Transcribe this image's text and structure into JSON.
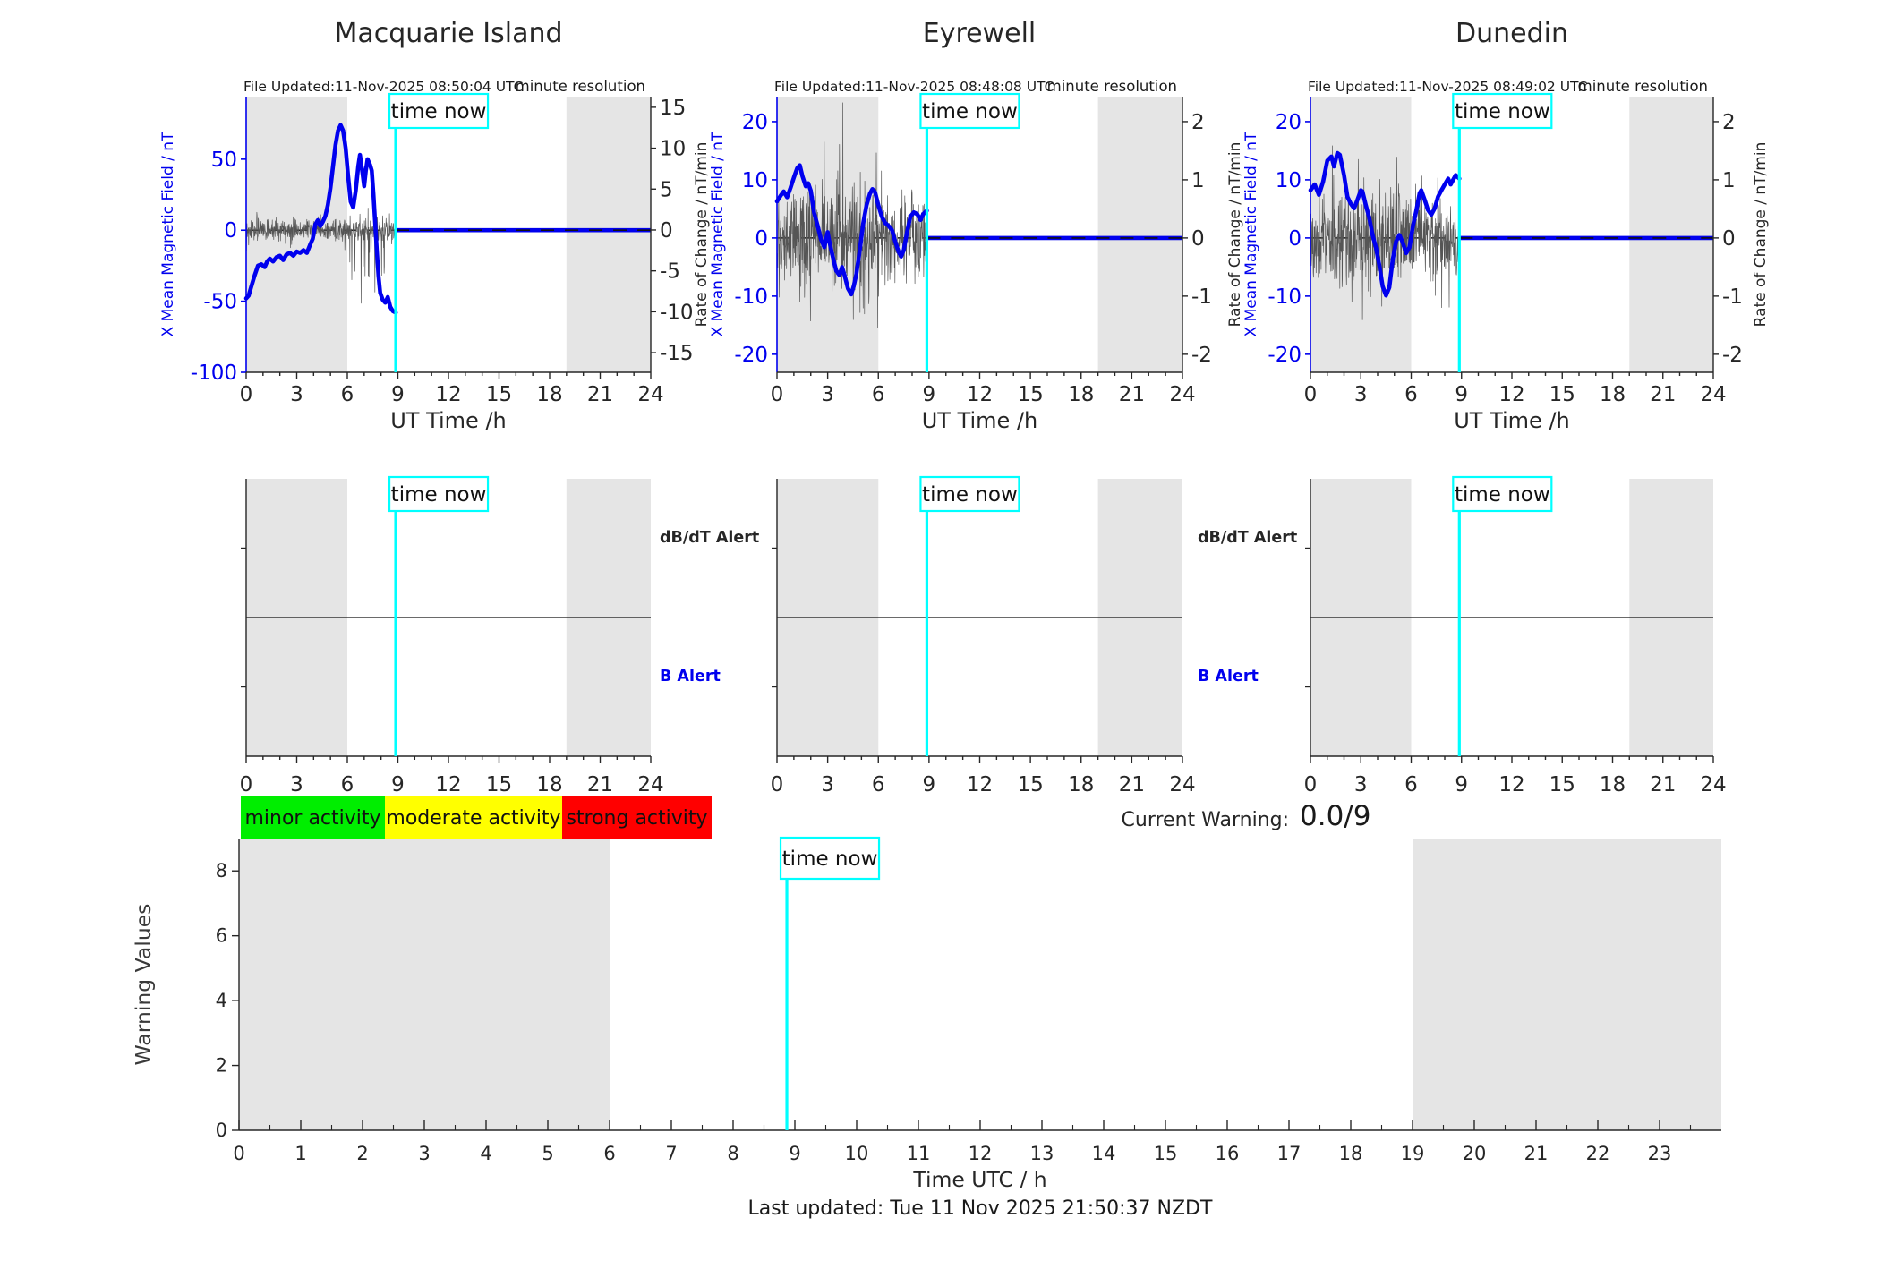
{
  "page": {
    "footer": "Last updated: Tue 11 Nov 2025 21:50:37 NZDT"
  },
  "time_now": {
    "label": "time now",
    "hour": 8.87
  },
  "current_warning": {
    "label": "Current Warning:",
    "value": "0.0/9"
  },
  "legend": {
    "items": [
      {
        "label": "minor activity",
        "color": "#00ee00"
      },
      {
        "label": "moderate activity",
        "color": "#ffff00"
      },
      {
        "label": "strong activity",
        "color": "#ff0000"
      }
    ]
  },
  "colors": {
    "blue": "#0000ee",
    "cyan": "#00ffff",
    "night_band": "#e5e5e5",
    "noise": "#555555",
    "text": "#262626",
    "dash": "#111111"
  },
  "chart_data": [
    {
      "type": "line",
      "station": "Macquarie Island",
      "file_updated": "File Updated:11-Nov-2025 08:50:04 UTC",
      "annotation": "minute resolution",
      "xlabel": "UT Time /h",
      "xlim": [
        0,
        24
      ],
      "x_ticks": [
        0,
        3,
        6,
        9,
        12,
        15,
        18,
        21,
        24
      ],
      "night_bands": [
        [
          0,
          6
        ],
        [
          19,
          24
        ]
      ],
      "left_axis": {
        "label": "X Mean Magnetic Field / nT",
        "ticks": [
          50,
          0,
          -50,
          -100
        ],
        "ylim": [
          -100,
          94
        ],
        "color": "#0000ee"
      },
      "right_axis": {
        "label": "Rate of Change / nT/min",
        "ticks": [
          15,
          10,
          5,
          0,
          -5,
          -10,
          -15
        ],
        "ylim": [
          -17.4,
          16.3
        ]
      },
      "series": [
        {
          "name": "x-mean-field",
          "axis": "left",
          "width": 4.6,
          "x": [
            0,
            0.15,
            0.3,
            0.5,
            0.7,
            0.9,
            1.1,
            1.25,
            1.4,
            1.6,
            1.8,
            2.0,
            2.2,
            2.4,
            2.6,
            2.8,
            3.0,
            3.2,
            3.4,
            3.6,
            3.8,
            3.95,
            4.1,
            4.25,
            4.4,
            4.55,
            4.7,
            4.85,
            5.0,
            5.15,
            5.3,
            5.45,
            5.6,
            5.75,
            5.9,
            6.05,
            6.2,
            6.35,
            6.5,
            6.65,
            6.75,
            6.9,
            7.0,
            7.1,
            7.2,
            7.35,
            7.45,
            7.55,
            7.65,
            7.75,
            7.85,
            7.95,
            8.1,
            8.25,
            8.4,
            8.55,
            8.7,
            8.87
          ],
          "y": [
            -48,
            -46,
            -40,
            -32,
            -25,
            -24,
            -26,
            -22,
            -20,
            -22,
            -19,
            -18,
            -21,
            -17,
            -16,
            -18,
            -15,
            -16,
            -14,
            -16,
            -10,
            -6,
            4,
            7,
            3,
            6,
            10,
            18,
            30,
            45,
            60,
            70,
            74,
            70,
            58,
            38,
            20,
            16,
            28,
            45,
            53,
            40,
            31,
            42,
            50,
            46,
            42,
            25,
            5,
            -15,
            -32,
            -44,
            -49,
            -51,
            -47,
            -54,
            -57,
            -58
          ]
        },
        {
          "name": "rate-of-change",
          "axis": "right",
          "width": 0.7,
          "noise": {
            "x_range": [
              0,
              8.87
            ],
            "amplitude": 1.5,
            "spike_range": [
              6.1,
              8.8
            ],
            "spike_amplitude": -8.5,
            "spike_prob": 0.1,
            "bipolar": false,
            "seed": 13
          }
        }
      ],
      "flat_after_time_now": 0
    },
    {
      "type": "line",
      "station": "Eyrewell",
      "file_updated": "File Updated:11-Nov-2025 08:48:08 UTC",
      "annotation": "minute resolution",
      "xlabel": "UT Time /h",
      "xlim": [
        0,
        24
      ],
      "x_ticks": [
        0,
        3,
        6,
        9,
        12,
        15,
        18,
        21,
        24
      ],
      "night_bands": [
        [
          0,
          6
        ],
        [
          19,
          24
        ]
      ],
      "left_axis": {
        "label": "X Mean Magnetic Field / nT",
        "ticks": [
          20,
          10,
          0,
          -10,
          -20
        ],
        "ylim": [
          -23.1,
          24.3
        ],
        "color": "#0000ee"
      },
      "right_axis": {
        "label": "Rate of Change / nT/min",
        "ticks": [
          2,
          1,
          0,
          -1,
          -2
        ],
        "ylim": [
          -2.31,
          2.43
        ]
      },
      "series": [
        {
          "name": "x-mean-field",
          "axis": "left",
          "width": 4.6,
          "x": [
            0,
            0.2,
            0.4,
            0.6,
            0.8,
            1.0,
            1.2,
            1.35,
            1.5,
            1.7,
            1.85,
            2.0,
            2.2,
            2.4,
            2.6,
            2.8,
            3.0,
            3.1,
            3.3,
            3.5,
            3.7,
            3.85,
            4.0,
            4.2,
            4.4,
            4.55,
            4.7,
            4.9,
            5.1,
            5.3,
            5.5,
            5.65,
            5.8,
            6.0,
            6.2,
            6.4,
            6.6,
            6.8,
            7.0,
            7.2,
            7.35,
            7.5,
            7.7,
            7.9,
            8.1,
            8.3,
            8.5,
            8.65,
            8.87
          ],
          "y": [
            6.3,
            7.2,
            8.0,
            7.0,
            8.6,
            10.4,
            12.0,
            12.5,
            10.7,
            8.9,
            9.4,
            8.1,
            4.3,
            2.2,
            -0.2,
            -1.6,
            1.0,
            -0.6,
            -3.2,
            -5.6,
            -6.4,
            -5.0,
            -6.4,
            -8.7,
            -9.7,
            -8.2,
            -6.2,
            -2.1,
            2.5,
            5.6,
            7.6,
            8.4,
            7.9,
            5.6,
            3.7,
            2.6,
            2.1,
            1.4,
            -0.6,
            -2.4,
            -3.2,
            -2.1,
            1.0,
            3.7,
            4.4,
            4.1,
            3.1,
            4.1,
            4.7
          ]
        },
        {
          "name": "rate-of-change",
          "axis": "right",
          "width": 0.7,
          "noise": {
            "x_range": [
              0,
              8.87
            ],
            "amplitude": 0.85,
            "spike_range": [
              1.3,
              6.8
            ],
            "spike_amplitude": 1.15,
            "spike_prob": 0.18,
            "bipolar": true,
            "seed": 29
          }
        }
      ],
      "flat_after_time_now": 0
    },
    {
      "type": "line",
      "station": "Dunedin",
      "file_updated": "File Updated:11-Nov-2025 08:49:02 UTC",
      "annotation": "minute resolution",
      "xlabel": "UT Time /h",
      "xlim": [
        0,
        24
      ],
      "x_ticks": [
        0,
        3,
        6,
        9,
        12,
        15,
        18,
        21,
        24
      ],
      "night_bands": [
        [
          0,
          6
        ],
        [
          19,
          24
        ]
      ],
      "left_axis": {
        "label": "X Mean Magnetic Field / nT",
        "ticks": [
          20,
          10,
          0,
          -10,
          -20
        ],
        "ylim": [
          -23.1,
          24.3
        ],
        "color": "#0000ee"
      },
      "right_axis": {
        "label": "Rate of Change / nT/min",
        "ticks": [
          2,
          1,
          0,
          -1,
          -2
        ],
        "ylim": [
          -2.31,
          2.43
        ]
      },
      "series": [
        {
          "name": "x-mean-field",
          "axis": "left",
          "width": 4.6,
          "x": [
            0,
            0.25,
            0.5,
            0.75,
            1.0,
            1.25,
            1.4,
            1.6,
            1.75,
            2.0,
            2.2,
            2.4,
            2.6,
            2.75,
            3.0,
            3.1,
            3.3,
            3.5,
            3.7,
            3.9,
            4.1,
            4.3,
            4.5,
            4.7,
            4.9,
            5.1,
            5.3,
            5.5,
            5.7,
            5.9,
            6.1,
            6.3,
            6.5,
            6.6,
            6.8,
            7.0,
            7.2,
            7.4,
            7.6,
            7.8,
            8.0,
            8.2,
            8.35,
            8.5,
            8.65,
            8.87
          ],
          "y": [
            8.2,
            9.2,
            7.4,
            9.7,
            13.3,
            14.0,
            12.3,
            14.6,
            14.3,
            10.8,
            7.1,
            5.9,
            5.1,
            6.2,
            8.2,
            8.0,
            5.6,
            3.5,
            0.5,
            -1.6,
            -4.7,
            -8.3,
            -9.9,
            -8.5,
            -3.7,
            -0.6,
            0.5,
            -0.8,
            -2.6,
            -1.6,
            2.0,
            4.6,
            7.7,
            8.2,
            6.6,
            4.8,
            4.0,
            5.1,
            7.1,
            8.2,
            9.2,
            10.2,
            9.2,
            10.0,
            10.8,
            10.2
          ]
        },
        {
          "name": "rate-of-change",
          "axis": "right",
          "width": 0.7,
          "noise": {
            "x_range": [
              0,
              8.87
            ],
            "amplitude": 0.8,
            "spike_range": [
              1.3,
              6.3
            ],
            "spike_amplitude": 1.1,
            "spike_prob": 0.16,
            "bipolar": true,
            "seed": 47
          }
        }
      ],
      "flat_after_time_now": 0
    },
    {
      "type": "alert",
      "station": "Macquarie Island",
      "xlim": [
        0,
        24
      ],
      "x_ticks": [
        0,
        3,
        6,
        9,
        12,
        15,
        18,
        21,
        24
      ],
      "night_bands": [
        [
          0,
          6
        ],
        [
          19,
          24
        ]
      ],
      "show_labels": true,
      "threshold_labels": [
        {
          "text": "dB/dT Alert",
          "color": "#262626"
        },
        {
          "text": "B Alert",
          "color": "#0000ee"
        }
      ]
    },
    {
      "type": "alert",
      "station": "Eyrewell",
      "xlim": [
        0,
        24
      ],
      "x_ticks": [
        0,
        3,
        6,
        9,
        12,
        15,
        18,
        21,
        24
      ],
      "night_bands": [
        [
          0,
          6
        ],
        [
          19,
          24
        ]
      ],
      "show_labels": true,
      "threshold_labels": [
        {
          "text": "dB/dT Alert",
          "color": "#262626"
        },
        {
          "text": "B Alert",
          "color": "#0000ee"
        }
      ]
    },
    {
      "type": "alert",
      "station": "Dunedin",
      "xlim": [
        0,
        24
      ],
      "x_ticks": [
        0,
        3,
        6,
        9,
        12,
        15,
        18,
        21,
        24
      ],
      "night_bands": [
        [
          0,
          6
        ],
        [
          19,
          24
        ]
      ],
      "show_labels": false,
      "threshold_labels": []
    },
    {
      "type": "warning",
      "ylabel": "Warning Values",
      "xlabel": "Time UTC / h",
      "xlim": [
        0,
        24
      ],
      "x_ticks": [
        0,
        1,
        2,
        3,
        4,
        5,
        6,
        7,
        8,
        9,
        10,
        11,
        12,
        13,
        14,
        15,
        16,
        17,
        18,
        19,
        20,
        21,
        22,
        23
      ],
      "ylim": [
        0,
        9
      ],
      "y_ticks": [
        0,
        2,
        4,
        6,
        8
      ],
      "night_bands": [
        [
          0,
          6
        ],
        [
          19,
          24
        ]
      ],
      "series": []
    }
  ]
}
